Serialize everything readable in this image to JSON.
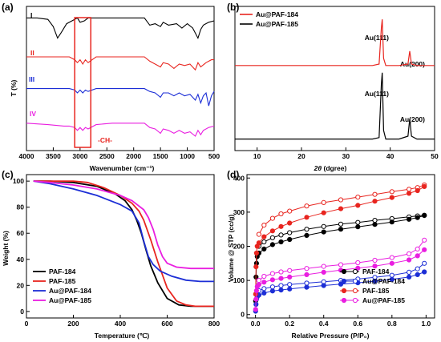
{
  "chart_data": [
    {
      "panel": "(a)",
      "type": "line",
      "xlabel": "Wavenumber (cm⁻¹)",
      "ylabel": "T (%)",
      "xlim": [
        4000,
        500
      ],
      "xticks": [
        4000,
        3500,
        3000,
        2500,
        2000,
        1500,
        1000,
        500
      ],
      "series": [
        {
          "name": "I",
          "color": "#000000",
          "offset": 0.92,
          "x": [
            4000,
            3800,
            3600,
            3500,
            3420,
            3350,
            3250,
            3150,
            3050,
            3000,
            2920,
            2850,
            2700,
            2400,
            2000,
            1800,
            1700,
            1600,
            1500,
            1450,
            1350,
            1200,
            1100,
            1000,
            900,
            800,
            750,
            700,
            600,
            500
          ],
          "y": [
            0,
            0,
            -0.01,
            -0.06,
            -0.14,
            -0.1,
            -0.04,
            -0.02,
            0,
            -0.03,
            -0.02,
            0,
            0,
            0,
            0,
            0,
            -0.05,
            -0.04,
            -0.06,
            -0.03,
            -0.05,
            -0.04,
            -0.07,
            -0.04,
            -0.07,
            -0.14,
            -0.08,
            -0.05,
            -0.03,
            -0.02
          ]
        },
        {
          "name": "II",
          "color": "#e8251f",
          "offset": 0.65,
          "x": [
            4000,
            3500,
            3200,
            3100,
            3050,
            3000,
            2950,
            2900,
            2850,
            2700,
            2400,
            2000,
            1800,
            1700,
            1600,
            1500,
            1450,
            1350,
            1250,
            1150,
            1050,
            950,
            850,
            800,
            750,
            650,
            550,
            500
          ],
          "y": [
            0,
            0,
            0,
            -0.02,
            -0.04,
            -0.02,
            -0.05,
            -0.02,
            -0.04,
            0,
            0,
            0,
            0,
            -0.03,
            -0.05,
            -0.07,
            -0.04,
            -0.05,
            -0.08,
            -0.05,
            -0.06,
            -0.05,
            -0.09,
            -0.04,
            -0.07,
            -0.04,
            -0.02,
            -0.02
          ]
        },
        {
          "name": "III",
          "color": "#1c2ed6",
          "offset": 0.43,
          "x": [
            4000,
            3500,
            3200,
            3100,
            3050,
            3000,
            2950,
            2900,
            2850,
            2700,
            2400,
            2000,
            1800,
            1700,
            1600,
            1500,
            1450,
            1350,
            1250,
            1150,
            1050,
            950,
            850,
            800,
            750,
            700,
            650,
            600,
            550,
            500
          ],
          "y": [
            0,
            0,
            0,
            -0.01,
            -0.03,
            -0.01,
            -0.03,
            -0.01,
            -0.02,
            0,
            0,
            0,
            0,
            -0.02,
            -0.03,
            -0.06,
            -0.03,
            -0.03,
            -0.05,
            -0.03,
            -0.05,
            -0.04,
            -0.08,
            -0.04,
            -0.1,
            -0.05,
            -0.03,
            -0.12,
            -0.05,
            -0.02
          ]
        },
        {
          "name": "IV",
          "color": "#e91ee0",
          "offset": 0.19,
          "x": [
            4000,
            3600,
            3300,
            3200,
            3100,
            3050,
            3000,
            2950,
            2900,
            2850,
            2700,
            2400,
            2000,
            1800,
            1700,
            1600,
            1500,
            1450,
            1350,
            1250,
            1150,
            1050,
            950,
            850,
            800,
            750,
            700,
            600,
            500
          ],
          "y": [
            0,
            -0.01,
            -0.02,
            -0.02,
            -0.03,
            -0.05,
            -0.03,
            -0.05,
            -0.03,
            -0.04,
            -0.01,
            0,
            0,
            0,
            -0.03,
            -0.04,
            -0.07,
            -0.04,
            -0.05,
            -0.07,
            -0.05,
            -0.07,
            -0.06,
            -0.09,
            -0.05,
            -0.08,
            -0.05,
            -0.03,
            -0.02
          ]
        }
      ],
      "annotations": [
        "-CH-"
      ],
      "highlight_box": {
        "x_from": 3100,
        "x_to": 2800,
        "color": "#e8251f"
      }
    },
    {
      "panel": "(b)",
      "type": "line",
      "xlabel": "2θ (dgree)",
      "xlim": [
        5,
        50
      ],
      "xticks": [
        10,
        20,
        30,
        40,
        50
      ],
      "legend": "top-left",
      "series": [
        {
          "name": "Au@PAF-184",
          "color": "#e8251f",
          "offset": 0.59,
          "x": [
            5,
            10,
            20,
            30,
            36,
            37.5,
            38.0,
            38.2,
            38.5,
            39,
            42,
            44.0,
            44.4,
            44.8,
            46,
            50
          ],
          "y": [
            0,
            0,
            0,
            0,
            0,
            0.01,
            0.26,
            0.32,
            0.05,
            0,
            0,
            0.01,
            0.1,
            0.01,
            0,
            0
          ]
        },
        {
          "name": "Au@PAF-185",
          "color": "#000000",
          "offset": 0.08,
          "x": [
            5,
            10,
            20,
            30,
            36,
            37.5,
            38.0,
            38.2,
            38.5,
            39,
            42,
            44.0,
            44.4,
            44.8,
            46,
            50
          ],
          "y": [
            0,
            0,
            0,
            0,
            0,
            0.01,
            0.38,
            0.46,
            0.06,
            0,
            0,
            0.02,
            0.14,
            0.02,
            0,
            0
          ]
        }
      ],
      "peak_labels": [
        "Au(111)",
        "Au(200)",
        "Au(111)",
        "Au(200)"
      ]
    },
    {
      "panel": "(c)",
      "type": "line",
      "xlabel": "Temperature (℃)",
      "ylabel": "Weight (%)",
      "xlim": [
        0,
        800
      ],
      "ylim": [
        -5,
        105
      ],
      "xticks": [
        0,
        200,
        400,
        600,
        800
      ],
      "yticks": [
        0,
        20,
        40,
        60,
        80,
        100
      ],
      "legend": "bottom-left",
      "series": [
        {
          "name": "PAF-184",
          "color": "#000000",
          "x": [
            30,
            100,
            200,
            300,
            380,
            420,
            450,
            470,
            490,
            510,
            530,
            560,
            600,
            650,
            700,
            750,
            800
          ],
          "y": [
            100,
            100,
            99,
            96,
            90,
            85,
            78,
            70,
            60,
            47,
            35,
            22,
            10,
            5,
            4,
            4,
            4
          ]
        },
        {
          "name": "PAF-185",
          "color": "#e8251f",
          "x": [
            30,
            100,
            200,
            260,
            330,
            400,
            450,
            480,
            500,
            530,
            560,
            600,
            640,
            680,
            720,
            800
          ],
          "y": [
            100,
            100,
            100,
            99,
            95,
            89,
            83,
            77,
            70,
            55,
            38,
            18,
            8,
            5,
            4,
            4
          ]
        },
        {
          "name": "Au@PAF-184",
          "color": "#1c2ed6",
          "x": [
            30,
            100,
            200,
            300,
            400,
            450,
            480,
            500,
            520,
            540,
            570,
            620,
            680,
            740,
            800
          ],
          "y": [
            100,
            98,
            94,
            89,
            82,
            77,
            68,
            54,
            42,
            36,
            31,
            27,
            24,
            23,
            23
          ]
        },
        {
          "name": "Au@PAF-185",
          "color": "#e91ee0",
          "x": [
            30,
            100,
            200,
            300,
            400,
            450,
            500,
            520,
            540,
            560,
            580,
            600,
            640,
            700,
            800
          ],
          "y": [
            100,
            99,
            97,
            94,
            89,
            85,
            78,
            72,
            63,
            51,
            42,
            37,
            34,
            33,
            33
          ]
        }
      ]
    },
    {
      "panel": "(d)",
      "type": "scatter",
      "xlabel": "Relative Pressure (P/P₀)",
      "ylabel": "Volume @ STP (cc/g)",
      "xlim": [
        -0.05,
        1.05
      ],
      "ylim": [
        -10,
        410
      ],
      "xticks": [
        0.0,
        0.2,
        0.4,
        0.6,
        0.8,
        1.0
      ],
      "yticks": [
        0,
        100,
        200,
        300,
        400
      ],
      "legend": "bottom-right",
      "series": [
        {
          "name": "PAF-184",
          "color": "#000000",
          "x": [
            0.001,
            0.003,
            0.006,
            0.01,
            0.02,
            0.05,
            0.1,
            0.15,
            0.2,
            0.3,
            0.4,
            0.5,
            0.6,
            0.7,
            0.8,
            0.9,
            0.95,
            0.99
          ],
          "adsorption": [
            40,
            110,
            150,
            170,
            180,
            192,
            205,
            213,
            220,
            232,
            242,
            250,
            257,
            264,
            271,
            279,
            284,
            290
          ],
          "desorption": [
            null,
            null,
            null,
            null,
            200,
            213,
            225,
            233,
            240,
            250,
            258,
            265,
            270,
            276,
            281,
            286,
            289,
            291
          ]
        },
        {
          "name": "Au@PAF-184",
          "color": "#1c2ed6",
          "x": [
            0.001,
            0.003,
            0.006,
            0.01,
            0.02,
            0.05,
            0.1,
            0.15,
            0.2,
            0.3,
            0.4,
            0.5,
            0.6,
            0.7,
            0.8,
            0.9,
            0.95,
            0.99
          ],
          "adsorption": [
            10,
            30,
            45,
            52,
            57,
            63,
            69,
            72,
            75,
            80,
            85,
            89,
            93,
            98,
            103,
            110,
            117,
            125
          ],
          "desorption": [
            null,
            null,
            null,
            null,
            70,
            76,
            81,
            85,
            88,
            92,
            96,
            100,
            104,
            109,
            115,
            124,
            134,
            150
          ]
        },
        {
          "name": "PAF-185",
          "color": "#e8251f",
          "x": [
            0.001,
            0.003,
            0.006,
            0.01,
            0.02,
            0.05,
            0.1,
            0.15,
            0.2,
            0.3,
            0.4,
            0.5,
            0.6,
            0.7,
            0.8,
            0.9,
            0.95,
            0.99
          ],
          "adsorption": [
            60,
            140,
            180,
            200,
            210,
            228,
            245,
            258,
            268,
            285,
            298,
            310,
            320,
            332,
            343,
            355,
            363,
            375
          ],
          "desorption": [
            null,
            null,
            null,
            null,
            235,
            262,
            282,
            295,
            303,
            318,
            328,
            336,
            344,
            352,
            360,
            367,
            372,
            380
          ]
        },
        {
          "name": "Au@PAF-185",
          "color": "#e91ee0",
          "x": [
            0.001,
            0.003,
            0.006,
            0.01,
            0.02,
            0.05,
            0.1,
            0.15,
            0.2,
            0.3,
            0.4,
            0.5,
            0.6,
            0.7,
            0.8,
            0.9,
            0.95,
            0.99
          ],
          "adsorption": [
            15,
            45,
            70,
            82,
            88,
            95,
            102,
            106,
            110,
            117,
            124,
            130,
            136,
            142,
            150,
            160,
            172,
            190
          ],
          "desorption": [
            null,
            null,
            null,
            null,
            100,
            112,
            120,
            125,
            129,
            135,
            141,
            146,
            152,
            159,
            167,
            178,
            192,
            218
          ]
        }
      ]
    }
  ],
  "labels": {
    "a_panel": "(a)",
    "a_xlabel": "Wavenumber (cm⁻¹)",
    "a_ylabel": "T (%)",
    "a_ch": "-CH-",
    "a_I": "I",
    "a_II": "II",
    "a_III": "III",
    "a_IV": "IV",
    "b_panel": "(b)",
    "b_xlabel_theta": "2θ",
    "b_xlabel_rest": " (dgree)",
    "b_leg1": "Au@PAF-184",
    "b_leg2": "Au@PAF-185",
    "b_p1": "Au(111)",
    "b_p2": "Au(200)",
    "b_p3": "Au(111)",
    "b_p4": "Au(200)",
    "c_panel": "(c)",
    "c_xlabel": "Temperature (℃)",
    "c_ylabel": "Weight (%)",
    "c_leg1": "PAF-184",
    "c_leg2": "PAF-185",
    "c_leg3": "Au@PAF-184",
    "c_leg4": "Au@PAF-185",
    "d_panel": "(d)",
    "d_xlabel": "Relative Pressure (P/P₀)",
    "d_ylabel": "Volume @ STP (cc/g)",
    "d_leg1": "PAF-184",
    "d_leg2": "Au@PAF-184",
    "d_leg3": "PAF-185",
    "d_leg4": "Au@PAF-185"
  }
}
